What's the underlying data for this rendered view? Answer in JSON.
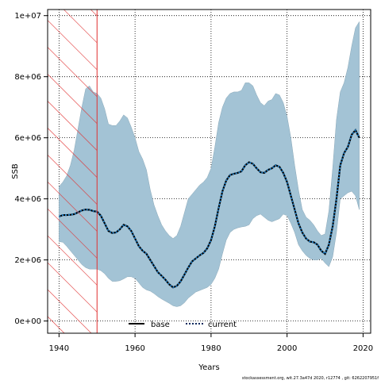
{
  "chart_data": {
    "type": "area",
    "title": "",
    "xlabel": "Years",
    "ylabel": "SSB",
    "xlim": [
      1937,
      2022
    ],
    "ylim": [
      -400000,
      10200000
    ],
    "x_ticks": [
      1940,
      1960,
      1980,
      2000,
      2020
    ],
    "x_tick_labels": [
      "1940",
      "1960",
      "1980",
      "2000",
      "2020"
    ],
    "y_ticks": [
      0,
      2000000,
      4000000,
      6000000,
      8000000,
      10000000
    ],
    "y_tick_labels": [
      "0e+00",
      "2e+06",
      "4e+06",
      "6e+06",
      "8e+06",
      "1e+07"
    ],
    "grid": true,
    "legend_position": "bottom-center",
    "hatched_region": {
      "x_start": 1937,
      "x_end": 1950,
      "color": "#e03030"
    },
    "footer_text": "stockassessment.org, wit.27.3a47d   2020, r12774 , git: 6262207951f",
    "series": [
      {
        "name": "base",
        "color": "#000000",
        "style": "solid",
        "values": []
      },
      {
        "name": "current",
        "color": "#0a2a5e",
        "style": "dotted",
        "band_color": "#a3c3d5",
        "x": [
          1940,
          1941,
          1942,
          1943,
          1944,
          1945,
          1946,
          1947,
          1948,
          1949,
          1950,
          1951,
          1952,
          1953,
          1954,
          1955,
          1956,
          1957,
          1958,
          1959,
          1960,
          1961,
          1962,
          1963,
          1964,
          1965,
          1966,
          1967,
          1968,
          1969,
          1970,
          1971,
          1972,
          1973,
          1974,
          1975,
          1976,
          1977,
          1978,
          1979,
          1980,
          1981,
          1982,
          1983,
          1984,
          1985,
          1986,
          1987,
          1988,
          1989,
          1990,
          1991,
          1992,
          1993,
          1994,
          1995,
          1996,
          1997,
          1998,
          1999,
          2000,
          2001,
          2002,
          2003,
          2004,
          2005,
          2006,
          2007,
          2008,
          2009,
          2010,
          2011,
          2012,
          2013,
          2014,
          2015,
          2016,
          2017,
          2018,
          2019
        ],
        "values": [
          3420000,
          3470000,
          3470000,
          3480000,
          3500000,
          3560000,
          3620000,
          3650000,
          3640000,
          3600000,
          3580000,
          3450000,
          3200000,
          2950000,
          2880000,
          2900000,
          3000000,
          3150000,
          3100000,
          2950000,
          2700000,
          2450000,
          2300000,
          2200000,
          2000000,
          1800000,
          1600000,
          1480000,
          1350000,
          1200000,
          1100000,
          1150000,
          1300000,
          1520000,
          1750000,
          1950000,
          2050000,
          2150000,
          2230000,
          2380000,
          2650000,
          3100000,
          3700000,
          4250000,
          4600000,
          4780000,
          4820000,
          4850000,
          4900000,
          5100000,
          5200000,
          5150000,
          5000000,
          4870000,
          4850000,
          4950000,
          5000000,
          5100000,
          5050000,
          4850000,
          4550000,
          4100000,
          3650000,
          3200000,
          2900000,
          2700000,
          2600000,
          2580000,
          2500000,
          2300000,
          2200000,
          2500000,
          3100000,
          4000000,
          5100000,
          5500000,
          5700000,
          6100000,
          6250000,
          6000000
        ],
        "lower": [
          2600000,
          2580000,
          2450000,
          2300000,
          2150000,
          2000000,
          1850000,
          1750000,
          1700000,
          1700000,
          1700000,
          1650000,
          1550000,
          1400000,
          1300000,
          1300000,
          1320000,
          1380000,
          1450000,
          1450000,
          1400000,
          1250000,
          1100000,
          1020000,
          980000,
          900000,
          800000,
          720000,
          650000,
          580000,
          500000,
          470000,
          500000,
          600000,
          750000,
          850000,
          950000,
          1000000,
          1050000,
          1100000,
          1200000,
          1400000,
          1700000,
          2200000,
          2650000,
          2900000,
          3000000,
          3050000,
          3080000,
          3100000,
          3150000,
          3350000,
          3450000,
          3500000,
          3400000,
          3300000,
          3250000,
          3300000,
          3350000,
          3500000,
          3450000,
          3200000,
          2900000,
          2500000,
          2300000,
          2150000,
          2050000,
          2000000,
          2000000,
          2050000,
          1900000,
          1780000,
          2100000,
          2900000,
          4000000,
          4100000,
          4200000,
          4250000,
          4100000,
          3650000
        ],
        "upper": [
          4400000,
          4550000,
          4750000,
          5100000,
          5600000,
          6300000,
          7000000,
          7600000,
          7700000,
          7500000,
          7450000,
          7300000,
          6950000,
          6450000,
          6400000,
          6400000,
          6550000,
          6750000,
          6650000,
          6350000,
          6000000,
          5550000,
          5300000,
          4950000,
          4300000,
          3800000,
          3450000,
          3150000,
          2950000,
          2800000,
          2700000,
          2800000,
          3100000,
          3550000,
          4000000,
          4150000,
          4300000,
          4450000,
          4550000,
          4700000,
          5000000,
          5700000,
          6500000,
          7000000,
          7300000,
          7450000,
          7500000,
          7500000,
          7550000,
          7800000,
          7800000,
          7700000,
          7400000,
          7150000,
          7050000,
          7200000,
          7250000,
          7450000,
          7400000,
          7150000,
          6700000,
          6000000,
          5100000,
          4300000,
          3650000,
          3400000,
          3300000,
          3150000,
          2950000,
          2800000,
          2850000,
          3600000,
          5000000,
          6600000,
          7500000,
          7800000,
          8300000,
          9000000,
          9600000,
          9800000
        ]
      }
    ]
  }
}
